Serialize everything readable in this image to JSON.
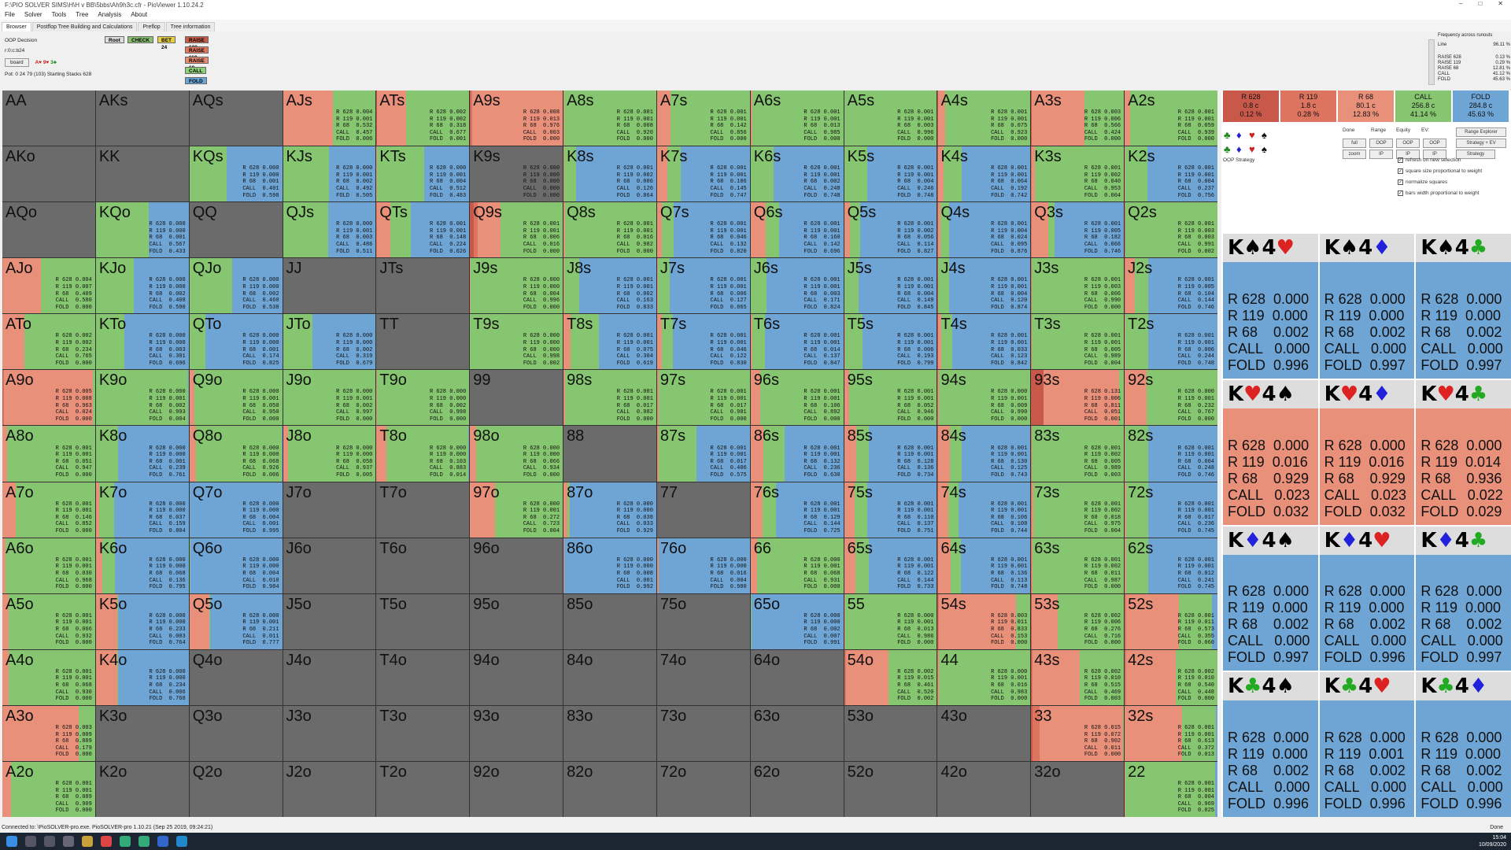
{
  "window": {
    "title": "F:\\PIO SOLVER SIMS\\H\\H v BB\\5bbs\\Ah9h3c.cfr - PioViewer 1.10.24.2",
    "controls": [
      "–",
      "□",
      "✕"
    ]
  },
  "menu": [
    "File",
    "Solver",
    "Tools",
    "Tree",
    "Analysis",
    "About"
  ],
  "tabs": [
    "Browser",
    "Postflop Tree Building and Calculations",
    "Preflop",
    "Tree information"
  ],
  "info": {
    "decision": "OOP Decision",
    "line": "r:0:c:b24",
    "board_button": "board",
    "cards": [
      "A♥",
      "9♥",
      "3♣"
    ],
    "pot": "Pot: 0 24 79 (103) Starting Stacks 628"
  },
  "tree_nodes": [
    {
      "label": "Root",
      "color": "#dddddd"
    },
    {
      "label": "CHECK",
      "color": "#88c070"
    },
    {
      "label": "BET 24",
      "color": "#e8d040"
    },
    {
      "label": "RAISE 628",
      "color": "#c85a48"
    },
    {
      "label": "RAISE 119",
      "color": "#e0775e"
    },
    {
      "label": "RAISE 68",
      "color": "#e88a70"
    },
    {
      "label": "CALL",
      "color": "#8fd07a"
    },
    {
      "label": "FOLD",
      "color": "#6aa6d6"
    }
  ],
  "freq_panel": {
    "title": "Frequency across runouts",
    "lines": [
      [
        "Line",
        "96.11 %"
      ],
      [
        "RAISE 628",
        "0.13 %"
      ],
      [
        "RAISE 119",
        "0.29 %"
      ],
      [
        "RAISE 68",
        "12.81 %"
      ],
      [
        "CALL",
        "41.12 %"
      ],
      [
        "FOLD",
        "45.63 %"
      ]
    ]
  },
  "actions": [
    {
      "name": "R 628",
      "combos": "0.8 c",
      "pct": "0.12 %",
      "color": "#c8584a"
    },
    {
      "name": "R 119",
      "combos": "1.8 c",
      "pct": "0.28 %",
      "color": "#dd7460"
    },
    {
      "name": "R 68",
      "combos": "80.1 c",
      "pct": "12.83 %",
      "color": "#e8907a"
    },
    {
      "name": "CALL",
      "combos": "256.8 c",
      "pct": "41.14 %",
      "color": "#86c670"
    },
    {
      "name": "FOLD",
      "combos": "284.8 c",
      "pct": "45.63 %",
      "color": "#6fa5d5"
    }
  ],
  "controls": {
    "labels": [
      "Done",
      "Range",
      "Equity",
      "EV:"
    ],
    "range_explorer": "Range Explorer",
    "buttons": [
      "full",
      "OOP",
      "OOP",
      "OOP",
      "zoom",
      "IP",
      "IP",
      "IP"
    ],
    "strategy_ev": "Strategy + EV",
    "strategy": "Strategy",
    "oop_strategy": "OOP Strategy",
    "checks": [
      "refresh on new selection",
      "square size proportional to weight",
      "normalize squares",
      "bars width proportional to weight"
    ]
  },
  "combos": [
    {
      "hand": "K♠4♥",
      "r628": "0.000",
      "r119": "0.000",
      "r68": "0.002",
      "call": "0.000",
      "fold": "0.996",
      "fill": "#6fa5d5"
    },
    {
      "hand": "K♠4♦",
      "r628": "0.000",
      "r119": "0.000",
      "r68": "0.002",
      "call": "0.000",
      "fold": "0.997",
      "fill": "#6fa5d5"
    },
    {
      "hand": "K♠4♣",
      "r628": "0.000",
      "r119": "0.000",
      "r68": "0.002",
      "call": "0.000",
      "fold": "0.997",
      "fill": "#6fa5d5"
    },
    {
      "hand": "K♥4♠",
      "r628": "0.000",
      "r119": "0.016",
      "r68": "0.929",
      "call": "0.023",
      "fold": "0.032",
      "fill": "#e8907a"
    },
    {
      "hand": "K♥4♦",
      "r628": "0.000",
      "r119": "0.016",
      "r68": "0.929",
      "call": "0.023",
      "fold": "0.032",
      "fill": "#e8907a"
    },
    {
      "hand": "K♥4♣",
      "r628": "0.000",
      "r119": "0.014",
      "r68": "0.936",
      "call": "0.022",
      "fold": "0.029",
      "fill": "#e8907a"
    },
    {
      "hand": "K♦4♠",
      "r628": "0.000",
      "r119": "0.000",
      "r68": "0.002",
      "call": "0.000",
      "fold": "0.997",
      "fill": "#6fa5d5"
    },
    {
      "hand": "K♦4♥",
      "r628": "0.000",
      "r119": "0.000",
      "r68": "0.002",
      "call": "0.000",
      "fold": "0.996",
      "fill": "#6fa5d5"
    },
    {
      "hand": "K♦4♣",
      "r628": "0.000",
      "r119": "0.000",
      "r68": "0.002",
      "call": "0.000",
      "fold": "0.997",
      "fill": "#6fa5d5"
    },
    {
      "hand": "K♣4♠",
      "r628": "0.000",
      "r119": "0.000",
      "r68": "0.002",
      "call": "0.000",
      "fold": "0.996",
      "fill": "#6fa5d5"
    },
    {
      "hand": "K♣4♥",
      "r628": "0.000",
      "r119": "0.001",
      "r68": "0.002",
      "call": "0.000",
      "fold": "0.996",
      "fill": "#6fa5d5"
    },
    {
      "hand": "K♣4♦",
      "r628": "0.000",
      "r119": "0.000",
      "r68": "0.002",
      "call": "0.000",
      "fold": "0.996",
      "fill": "#6fa5d5"
    }
  ],
  "matrix": [
    [
      "AA",
      "AKs",
      "AQs",
      "AJs",
      "ATs",
      "A9s",
      "A8s",
      "A7s",
      "A6s",
      "A5s",
      "A4s",
      "A3s",
      "A2s"
    ],
    [
      "AKo",
      "KK",
      "KQs",
      "KJs",
      "KTs",
      "K9s",
      "K8s",
      "K7s",
      "K6s",
      "K5s",
      "K4s",
      "K3s",
      "K2s"
    ],
    [
      "AQo",
      "KQo",
      "QQ",
      "QJs",
      "QTs",
      "Q9s",
      "Q8s",
      "Q7s",
      "Q6s",
      "Q5s",
      "Q4s",
      "Q3s",
      "Q2s"
    ],
    [
      "AJo",
      "KJo",
      "QJo",
      "JJ",
      "JTs",
      "J9s",
      "J8s",
      "J7s",
      "J6s",
      "J5s",
      "J4s",
      "J3s",
      "J2s"
    ],
    [
      "ATo",
      "KTo",
      "QTo",
      "JTo",
      "TT",
      "T9s",
      "T8s",
      "T7s",
      "T6s",
      "T5s",
      "T4s",
      "T3s",
      "T2s"
    ],
    [
      "A9o",
      "K9o",
      "Q9o",
      "J9o",
      "T9o",
      "99",
      "98s",
      "97s",
      "96s",
      "95s",
      "94s",
      "93s",
      "92s"
    ],
    [
      "A8o",
      "K8o",
      "Q8o",
      "J8o",
      "T8o",
      "98o",
      "88",
      "87s",
      "86s",
      "85s",
      "84s",
      "83s",
      "82s"
    ],
    [
      "A7o",
      "K7o",
      "Q7o",
      "J7o",
      "T7o",
      "97o",
      "87o",
      "77",
      "76s",
      "75s",
      "74s",
      "73s",
      "72s"
    ],
    [
      "A6o",
      "K6o",
      "Q6o",
      "J6o",
      "T6o",
      "96o",
      "86o",
      "76o",
      "66",
      "65s",
      "64s",
      "63s",
      "62s"
    ],
    [
      "A5o",
      "K5o",
      "Q5o",
      "J5o",
      "T5o",
      "95o",
      "85o",
      "75o",
      "65o",
      "55",
      "54s",
      "53s",
      "52s"
    ],
    [
      "A4o",
      "K4o",
      "Q4o",
      "J4o",
      "T4o",
      "94o",
      "84o",
      "74o",
      "64o",
      "54o",
      "44",
      "43s",
      "42s"
    ],
    [
      "A3o",
      "K3o",
      "Q3o",
      "J3o",
      "T3o",
      "93o",
      "83o",
      "73o",
      "63o",
      "53o",
      "43o",
      "33",
      "32s"
    ],
    [
      "A2o",
      "K2o",
      "Q2o",
      "J2o",
      "T2o",
      "92o",
      "82o",
      "72o",
      "62o",
      "52o",
      "42o",
      "32o",
      "22"
    ]
  ],
  "cell_strats": {
    "AJs": [
      0.004,
      0.001,
      0.532,
      0.457,
      0.006
    ],
    "ATs": [
      0.002,
      0.002,
      0.318,
      0.677,
      0.001
    ],
    "A9s": [
      0.008,
      0.013,
      0.976,
      0.003,
      0.0
    ],
    "A8s": [
      0.001,
      0.001,
      0.008,
      0.92,
      0.0
    ],
    "A7s": [
      0.001,
      0.001,
      0.142,
      0.856,
      0.0
    ],
    "A6s": [
      0.001,
      0.001,
      0.013,
      0.985,
      0.0
    ],
    "A5s": [
      0.001,
      0.001,
      0.003,
      0.996,
      0.0
    ],
    "A4s": [
      0.001,
      0.001,
      0.075,
      0.923,
      0.0
    ],
    "A3s": [
      0.003,
      0.006,
      0.566,
      0.424,
      0.0
    ],
    "A2s": [
      0.001,
      0.001,
      0.059,
      0.939,
      0.0
    ],
    "KQs": [
      0.0,
      0.0,
      0.001,
      0.401,
      0.598
    ],
    "KJs": [
      0.0,
      0.001,
      0.002,
      0.492,
      0.505
    ],
    "KTs": [
      0.0,
      0.001,
      0.004,
      0.512,
      0.483
    ],
    "K9s": [
      0.0,
      0.0,
      0.0,
      0.0,
      0.0
    ],
    "K8s": [
      0.001,
      0.002,
      0.006,
      0.126,
      0.864
    ],
    "K7s": [
      0.001,
      0.001,
      0.106,
      0.145,
      0.747
    ],
    "K6s": [
      0.001,
      0.001,
      0.002,
      0.248,
      0.748
    ],
    "K5s": [
      0.001,
      0.001,
      0.004,
      0.246,
      0.748
    ],
    "K4s": [
      0.001,
      0.001,
      0.064,
      0.192,
      0.742
    ],
    "K3s": [
      0.001,
      0.002,
      0.04,
      0.953,
      0.004
    ],
    "K2s": [
      0.001,
      0.001,
      0.004,
      0.237,
      0.756
    ],
    "KQo": [
      0.0,
      0.0,
      0.001,
      0.567,
      0.433
    ],
    "QJs": [
      0.0,
      0.001,
      0.003,
      0.486,
      0.511
    ],
    "QTs": [
      0.001,
      0.001,
      0.148,
      0.224,
      0.626
    ],
    "Q9s": [
      0.001,
      0.001,
      0.006,
      0.016,
      0.0
    ],
    "Q8s": [
      0.001,
      0.001,
      0.016,
      0.982,
      0.0
    ],
    "Q7s": [
      0.001,
      0.001,
      0.046,
      0.132,
      0.82
    ],
    "Q6s": [
      0.001,
      0.001,
      0.16,
      0.142,
      0.696
    ],
    "Q5s": [
      0.001,
      0.002,
      0.056,
      0.114,
      0.827
    ],
    "Q4s": [
      0.001,
      0.004,
      0.024,
      0.095,
      0.876
    ],
    "Q3s": [
      0.001,
      0.005,
      0.182,
      0.066,
      0.746
    ],
    "Q2s": [
      0.001,
      0.003,
      0.003,
      0.991,
      0.002
    ],
    "AJo": [
      0.004,
      0.007,
      0.409,
      0.58,
      0.0
    ],
    "KJo": [
      0.0,
      0.0,
      0.002,
      0.408,
      0.59
    ],
    "QJo": [
      0.0,
      0.0,
      0.002,
      0.46,
      0.538
    ],
    "J9s": [
      0.0,
      0.0,
      0.004,
      0.996,
      0.0
    ],
    "J8s": [
      0.001,
      0.001,
      0.002,
      0.163,
      0.833
    ],
    "J7s": [
      0.001,
      0.001,
      0.006,
      0.127,
      0.865
    ],
    "J6s": [
      0.001,
      0.001,
      0.003,
      0.171,
      0.824
    ],
    "J5s": [
      0.001,
      0.001,
      0.004,
      0.149,
      0.845
    ],
    "J4s": [
      0.001,
      0.001,
      0.004,
      0.12,
      0.874
    ],
    "J3s": [
      0.001,
      0.003,
      0.006,
      0.99,
      0.0
    ],
    "J2s": [
      0.001,
      0.005,
      0.104,
      0.144,
      0.746
    ],
    "ATo": [
      0.002,
      0.002,
      0.234,
      0.765,
      0.0
    ],
    "KTo": [
      0.0,
      0.0,
      0.003,
      0.301,
      0.696
    ],
    "QTo": [
      0.0,
      0.0,
      0.001,
      0.174,
      0.825
    ],
    "JTo": [
      0.0,
      0.0,
      0.002,
      0.319,
      0.679
    ],
    "T9s": [
      0.0,
      0.0,
      0.0,
      0.998,
      0.002
    ],
    "T8s": [
      0.001,
      0.001,
      0.075,
      0.304,
      0.619
    ],
    "T7s": [
      0.001,
      0.001,
      0.046,
      0.122,
      0.83
    ],
    "T6s": [
      0.001,
      0.001,
      0.014,
      0.137,
      0.847
    ],
    "T5s": [
      0.001,
      0.001,
      0.006,
      0.193,
      0.799
    ],
    "T4s": [
      0.001,
      0.001,
      0.033,
      0.123,
      0.842
    ],
    "T3s": [
      0.001,
      0.001,
      0.005,
      0.989,
      0.004
    ],
    "T2s": [
      0.001,
      0.001,
      0.006,
      0.244,
      0.748
    ],
    "A9o": [
      0.005,
      0.008,
      0.963,
      0.024,
      0.0
    ],
    "K9o": [
      0.0,
      0.001,
      0.002,
      0.993,
      0.004
    ],
    "Q9o": [
      0.0,
      0.001,
      0.05,
      0.95,
      0.0
    ],
    "J9o": [
      0.0,
      0.001,
      0.002,
      0.997,
      0.0
    ],
    "T9o": [
      0.0,
      0.0,
      0.002,
      0.998,
      0.0
    ],
    "98s": [
      0.001,
      0.001,
      0.017,
      0.982,
      0.0
    ],
    "97s": [
      0.001,
      0.001,
      0.017,
      0.981,
      0.0
    ],
    "96s": [
      0.001,
      0.001,
      0.106,
      0.892,
      0.0
    ],
    "95s": [
      0.001,
      0.001,
      0.052,
      0.946,
      0.0
    ],
    "94s": [
      0.0,
      0.001,
      0.009,
      0.99,
      0.0
    ],
    "93s": [
      0.131,
      0.006,
      0.811,
      0.051,
      0.001
    ],
    "92s": [
      0.0,
      0.001,
      0.232,
      0.767,
      0.0
    ],
    "A8o": [
      0.001,
      0.001,
      0.051,
      0.947,
      0.0
    ],
    "K8o": [
      0.0,
      0.0,
      0.001,
      0.239,
      0.761
    ],
    "Q8o": [
      0.0,
      0.0,
      0.068,
      0.926,
      0.006
    ],
    "J8o": [
      0.0,
      0.0,
      0.058,
      0.937,
      0.005
    ],
    "T8o": [
      0.0,
      0.0,
      0.103,
      0.883,
      0.014
    ],
    "98o": [
      0.0,
      0.0,
      0.066,
      0.934,
      0.0
    ],
    "87s": [
      0.001,
      0.001,
      0.017,
      0.406,
      0.575
    ],
    "86s": [
      0.001,
      0.001,
      0.132,
      0.236,
      0.63
    ],
    "85s": [
      0.001,
      0.001,
      0.128,
      0.136,
      0.734
    ],
    "84s": [
      0.001,
      0.001,
      0.13,
      0.125,
      0.743
    ],
    "83s": [
      0.001,
      0.002,
      0.005,
      0.989,
      0.003
    ],
    "82s": [
      0.001,
      0.001,
      0.004,
      0.248,
      0.746
    ],
    "A7o": [
      0.001,
      0.001,
      0.146,
      0.852,
      0.0
    ],
    "K7o": [
      0.0,
      0.0,
      0.037,
      0.159,
      0.804
    ],
    "Q7o": [
      0.0,
      0.0,
      0.004,
      0.001,
      0.995
    ],
    "97o": [
      0.0,
      0.001,
      0.272,
      0.723,
      0.004
    ],
    "87o": [
      0.0,
      0.0,
      0.038,
      0.033,
      0.929
    ],
    "76s": [
      0.001,
      0.001,
      0.129,
      0.144,
      0.725
    ],
    "75s": [
      0.001,
      0.001,
      0.11,
      0.137,
      0.751
    ],
    "74s": [
      0.001,
      0.001,
      0.106,
      0.108,
      0.744
    ],
    "73s": [
      0.001,
      0.002,
      0.018,
      0.975,
      0.004
    ],
    "72s": [
      0.001,
      0.001,
      0.017,
      0.236,
      0.745
    ],
    "A6o": [
      0.001,
      0.001,
      0.03,
      0.968,
      0.0
    ],
    "K6o": [
      0.0,
      0.0,
      0.068,
      0.136,
      0.795
    ],
    "Q6o": [
      0.0,
      0.0,
      0.004,
      0.01,
      0.984
    ],
    "86o": [
      0.0,
      0.0,
      0.008,
      0.001,
      0.992
    ],
    "76o": [
      0.0,
      0.0,
      0.016,
      0.004,
      0.98
    ],
    "66": [
      0.0,
      0.001,
      0.068,
      0.931,
      0.0
    ],
    "65s": [
      0.001,
      0.001,
      0.122,
      0.144,
      0.733
    ],
    "64s": [
      0.001,
      0.001,
      0.136,
      0.113,
      0.748
    ],
    "63s": [
      0.001,
      0.002,
      0.011,
      0.987,
      0.0
    ],
    "62s": [
      0.001,
      0.001,
      0.012,
      0.241,
      0.745
    ],
    "A5o": [
      0.001,
      0.001,
      0.066,
      0.932,
      0.0
    ],
    "K5o": [
      0.0,
      0.0,
      0.233,
      0.003,
      0.764
    ],
    "Q5o": [
      0.0,
      0.001,
      0.211,
      0.011,
      0.777
    ],
    "65o": [
      0.0,
      0.0,
      0.002,
      0.007,
      0.991
    ],
    "55": [
      0.0,
      0.001,
      0.013,
      0.986,
      0.0
    ],
    "54s": [
      0.003,
      0.011,
      0.833,
      0.153,
      0.0
    ],
    "53s": [
      0.002,
      0.006,
      0.276,
      0.716,
      0.0
    ],
    "52s": [
      0.001,
      0.011,
      0.573,
      0.355,
      0.06
    ],
    "A4o": [
      0.001,
      0.001,
      0.068,
      0.93,
      0.0
    ],
    "K4o": [
      0.0,
      0.0,
      0.234,
      0.006,
      0.76
    ],
    "54o": [
      0.002,
      0.015,
      0.461,
      0.52,
      0.002
    ],
    "44": [
      0.0,
      0.001,
      0.016,
      0.983,
      0.0
    ],
    "43s": [
      0.002,
      0.01,
      0.515,
      0.469,
      0.003
    ],
    "42s": [
      0.002,
      0.01,
      0.54,
      0.448,
      0.0
    ],
    "A3o": [
      0.003,
      0.009,
      0.809,
      0.179,
      0.0
    ],
    "33": [
      0.015,
      0.072,
      0.902,
      0.011,
      0.0
    ],
    "32s": [
      0.001,
      0.001,
      0.613,
      0.372,
      0.013
    ],
    "A2o": [
      0.001,
      0.001,
      0.089,
      0.909,
      0.0
    ],
    "22": [
      0.001,
      0.001,
      0.004,
      0.969,
      0.025
    ]
  },
  "status": {
    "left": "Connected to: \\PioSOLVER-pro.exe. PioSOLVER-pro 1.10.21 (Sep 25 2019, 09:24:21)",
    "right": "Done"
  },
  "taskbar": {
    "time": "15:04",
    "date": "10/09/2020"
  },
  "colors": {
    "r628": "#c8584a",
    "r119": "#dd7460",
    "r68": "#e8907a",
    "call": "#86c670",
    "fold": "#6fa5d5",
    "empty": "#6b6b6b"
  }
}
